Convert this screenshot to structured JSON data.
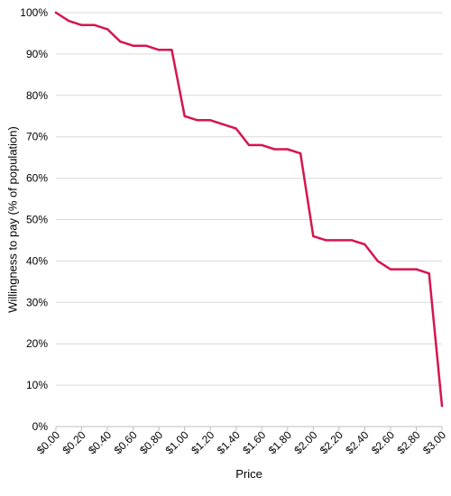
{
  "chart_data": {
    "type": "line",
    "title": "",
    "xlabel": "Price",
    "ylabel": "Willingness to pay (% of population)",
    "x_tick_labels": [
      "$0.00",
      "$0.20",
      "$0.40",
      "$0.60",
      "$0.80",
      "$1.00",
      "$1.20",
      "$1.40",
      "$1.60",
      "$1.80",
      "$2.00",
      "$2.20",
      "$2.40",
      "$2.60",
      "$2.80",
      "$3.00"
    ],
    "x_ticks": [
      0,
      0.2,
      0.4,
      0.6,
      0.8,
      1.0,
      1.2,
      1.4,
      1.6,
      1.8,
      2.0,
      2.2,
      2.4,
      2.6,
      2.8,
      3.0
    ],
    "y_tick_labels": [
      "0%",
      "10%",
      "20%",
      "30%",
      "40%",
      "50%",
      "60%",
      "70%",
      "80%",
      "90%",
      "100%"
    ],
    "y_ticks": [
      0,
      10,
      20,
      30,
      40,
      50,
      60,
      70,
      80,
      90,
      100
    ],
    "xlim": [
      0,
      3.0
    ],
    "ylim": [
      0,
      100
    ],
    "grid": "horizontal",
    "legend": "none",
    "series": [
      {
        "color": "#d6154f",
        "x": [
          0.0,
          0.1,
          0.2,
          0.3,
          0.4,
          0.5,
          0.6,
          0.7,
          0.8,
          0.9,
          1.0,
          1.1,
          1.2,
          1.3,
          1.4,
          1.5,
          1.6,
          1.7,
          1.8,
          1.9,
          2.0,
          2.1,
          2.2,
          2.3,
          2.4,
          2.5,
          2.6,
          2.7,
          2.8,
          2.9,
          3.0
        ],
        "values": [
          100,
          98,
          97,
          97,
          96,
          93,
          92,
          92,
          91,
          91,
          75,
          74,
          74,
          73,
          72,
          68,
          68,
          67,
          67,
          66,
          46,
          45,
          45,
          45,
          44,
          40,
          38,
          38,
          38,
          37,
          5
        ]
      }
    ]
  }
}
